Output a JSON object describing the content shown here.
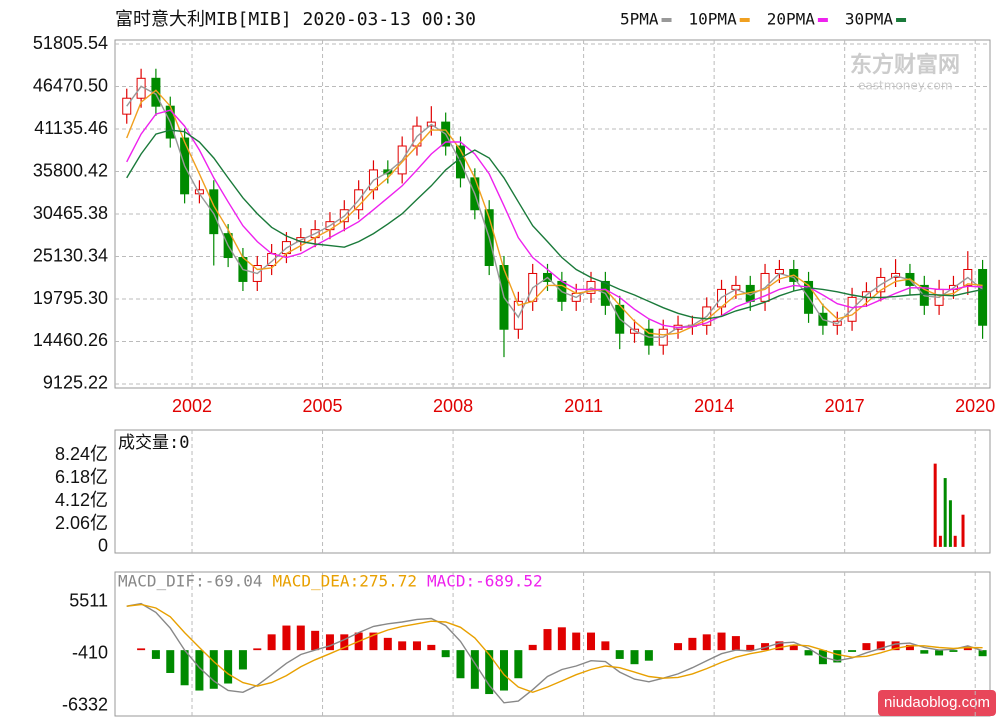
{
  "chart_data": [
    {
      "type": "candlestick",
      "title": "富时意大利MIB[MIB] 2020-03-13 00:30",
      "xlim": [
        2000.23,
        2020.34
      ],
      "xticks": [
        2002,
        2005,
        2008,
        2011,
        2014,
        2017,
        2020
      ],
      "ylim": [
        8623,
        52308
      ],
      "yticks": [
        51805.54,
        {
          "value": 46470.5,
          "label": "46470.50"
        },
        41135.46,
        35800.42,
        30465.38,
        25130.34,
        {
          "value": 19795.3,
          "label": "19795.30"
        },
        14460.26,
        9125.22
      ],
      "grid": true,
      "legend": "top-right",
      "up_color": "#e00000",
      "down_color": "#008a00",
      "x": [
        2000.5,
        2000.83,
        2001.17,
        2001.5,
        2001.83,
        2002.17,
        2002.5,
        2002.83,
        2003.17,
        2003.5,
        2003.83,
        2004.17,
        2004.5,
        2004.83,
        2005.17,
        2005.5,
        2005.83,
        2006.17,
        2006.5,
        2006.83,
        2007.17,
        2007.5,
        2007.83,
        2008.17,
        2008.5,
        2008.83,
        2009.17,
        2009.5,
        2009.83,
        2010.17,
        2010.5,
        2010.83,
        2011.17,
        2011.5,
        2011.83,
        2012.17,
        2012.5,
        2012.83,
        2013.17,
        2013.5,
        2013.83,
        2014.17,
        2014.5,
        2014.83,
        2015.17,
        2015.5,
        2015.83,
        2016.17,
        2016.5,
        2016.83,
        2017.17,
        2017.5,
        2017.83,
        2018.17,
        2018.5,
        2018.83,
        2019.17,
        2019.5,
        2019.83,
        2020.17
      ],
      "open": [
        43000,
        45000,
        47500,
        44000,
        40000,
        33000,
        33500,
        28000,
        25000,
        22000,
        24000,
        25500,
        27000,
        27500,
        28500,
        29500,
        31000,
        33500,
        36000,
        35500,
        39000,
        41500,
        42000,
        39000,
        35000,
        31000,
        24000,
        16000,
        19500,
        23000,
        22000,
        19500,
        20500,
        22000,
        19000,
        15500,
        16000,
        14000,
        16000,
        16500,
        16500,
        18800,
        21000,
        21500,
        19500,
        23000,
        23500,
        22000,
        18000,
        16500,
        17000,
        20000,
        20700,
        22500,
        23000,
        21500,
        19000,
        21000,
        21500,
        23500
      ],
      "high": [
        46200,
        48700,
        48700,
        45200,
        41200,
        34700,
        34700,
        29200,
        26200,
        25200,
        26700,
        28200,
        28700,
        29700,
        30700,
        32200,
        34700,
        37200,
        37200,
        40200,
        42700,
        44000,
        43200,
        40200,
        36200,
        32200,
        25200,
        20700,
        24200,
        24200,
        23200,
        21700,
        23200,
        23200,
        20200,
        17200,
        17200,
        17200,
        17700,
        17700,
        20000,
        22200,
        22700,
        22700,
        24200,
        24700,
        24700,
        23200,
        19200,
        18200,
        21200,
        21900,
        23700,
        24800,
        24200,
        22700,
        22200,
        22700,
        25800,
        24700
      ],
      "low": [
        41800,
        43800,
        42800,
        38800,
        31800,
        31800,
        24000,
        23800,
        20800,
        20800,
        22800,
        24300,
        25800,
        26300,
        27300,
        28300,
        29800,
        32300,
        34300,
        34300,
        37800,
        40300,
        37800,
        33800,
        29800,
        22800,
        12500,
        14800,
        18300,
        20800,
        18300,
        18300,
        19300,
        17800,
        13500,
        14300,
        12800,
        12800,
        14800,
        15300,
        15300,
        17600,
        19800,
        18300,
        18300,
        21800,
        20800,
        16800,
        15300,
        15300,
        15800,
        18800,
        19500,
        21300,
        20300,
        17800,
        17800,
        19800,
        20300,
        14800
      ],
      "close": [
        45000,
        47500,
        44000,
        40000,
        33000,
        33500,
        28000,
        25000,
        22000,
        24000,
        25500,
        27000,
        27500,
        28500,
        29500,
        31000,
        33500,
        36000,
        35500,
        39000,
        41500,
        42000,
        39000,
        35000,
        31000,
        24000,
        16000,
        19500,
        23000,
        22000,
        19500,
        20500,
        22000,
        19000,
        15500,
        16000,
        14000,
        16000,
        16500,
        16500,
        18800,
        21000,
        21500,
        19500,
        23000,
        23500,
        22000,
        18000,
        16500,
        17000,
        20000,
        20700,
        22500,
        23000,
        21500,
        19000,
        21000,
        21500,
        23500,
        16500
      ],
      "series": [
        {
          "name": "5PMA",
          "color": "#999999",
          "values": [
            44000,
            46500,
            45500,
            42000,
            36500,
            33000,
            30500,
            26500,
            23500,
            23000,
            24500,
            26200,
            27200,
            28000,
            29000,
            30200,
            32200,
            34700,
            35700,
            37200,
            40200,
            41700,
            40500,
            37000,
            33000,
            27500,
            20000,
            17500,
            21200,
            22500,
            20700,
            20000,
            21200,
            20500,
            17300,
            15800,
            15000,
            15000,
            16200,
            16500,
            17600,
            20000,
            21000,
            20300,
            21200,
            23000,
            22500,
            20000,
            17200,
            16700,
            18500,
            20300,
            21600,
            22700,
            22200,
            20200,
            20000,
            21200,
            22500,
            21000
          ]
        },
        {
          "name": "10PMA",
          "color": "#f0a020",
          "values": [
            40000,
            44500,
            46000,
            44000,
            39500,
            35500,
            31500,
            28500,
            25000,
            23500,
            23700,
            25500,
            26500,
            27500,
            28500,
            29700,
            31500,
            33500,
            35000,
            37000,
            39000,
            41000,
            41000,
            38500,
            35000,
            30000,
            23500,
            19000,
            19500,
            21500,
            21500,
            20500,
            20800,
            21000,
            19000,
            17000,
            15500,
            15300,
            15500,
            16300,
            17200,
            18800,
            20300,
            20600,
            21000,
            22300,
            22800,
            21500,
            19000,
            17300,
            17800,
            19300,
            20900,
            22000,
            22300,
            21000,
            20200,
            20500,
            21700,
            21500
          ]
        },
        {
          "name": "20PMA",
          "color": "#ee22ee",
          "values": [
            37000,
            40500,
            43000,
            43500,
            41500,
            38500,
            35000,
            32000,
            29000,
            27000,
            25500,
            25000,
            25500,
            26500,
            27500,
            28500,
            29500,
            31000,
            32500,
            34000,
            36000,
            38000,
            39500,
            39500,
            38000,
            35500,
            31500,
            27500,
            25000,
            23500,
            22000,
            21000,
            21000,
            21000,
            20000,
            18500,
            17300,
            16500,
            16200,
            16300,
            16800,
            17700,
            18800,
            19500,
            20200,
            21000,
            21500,
            21300,
            20300,
            19200,
            18700,
            18900,
            19700,
            20500,
            21200,
            21200,
            21000,
            21000,
            21400,
            21300
          ]
        },
        {
          "name": "30PMA",
          "color": "#1a7a3a",
          "values": [
            35000,
            38000,
            40500,
            41000,
            40800,
            39500,
            37500,
            35000,
            32500,
            30500,
            28800,
            27700,
            27000,
            26700,
            26500,
            26300,
            27000,
            28000,
            29200,
            30500,
            32300,
            34000,
            36000,
            37500,
            38500,
            37500,
            35000,
            32000,
            29000,
            27000,
            25000,
            23500,
            22500,
            21800,
            21000,
            20300,
            19500,
            18700,
            18000,
            17500,
            17300,
            17600,
            18300,
            18800,
            19400,
            20200,
            20800,
            21200,
            21000,
            20700,
            20300,
            20000,
            20000,
            20100,
            20300,
            20400,
            20300,
            20200,
            20600,
            21000
          ]
        }
      ]
    },
    {
      "type": "bar",
      "title": "成交量:0",
      "xgrid": true,
      "ylim": [
        -0.55,
        10.53
      ],
      "yticks": [
        {
          "value": 8.24,
          "label": "8.24亿"
        },
        {
          "value": 6.18,
          "label": "6.18亿"
        },
        {
          "value": 4.12,
          "label": "4.12亿"
        },
        {
          "value": 2.06,
          "label": "2.06亿"
        },
        0
      ],
      "x": [
        2019.08,
        2019.2,
        2019.31,
        2019.43,
        2019.54,
        2019.72
      ],
      "values": [
        7.5,
        1.0,
        6.2,
        4.2,
        1.0,
        2.9
      ],
      "colors": [
        "#e00000",
        "#e00000",
        "#008a00",
        "#008a00",
        "#e00000",
        "#e00000"
      ]
    },
    {
      "type": "macd",
      "xgrid": true,
      "up_color": "#e00000",
      "down_color": "#008a00",
      "ylim": [
        -7500,
        8900
      ],
      "yticks": [
        5511,
        -410,
        -6332
      ],
      "series": [
        {
          "name": "MACD_DIF:-69.04",
          "color": "#888888",
          "values": [
            5000,
            5300,
            4300,
            2500,
            0,
            -2000,
            -3500,
            -4600,
            -4800,
            -4000,
            -2800,
            -1500,
            -500,
            0,
            500,
            1200,
            2000,
            2700,
            3000,
            3200,
            3500,
            3600,
            2800,
            1000,
            -1500,
            -4000,
            -6000,
            -5800,
            -4500,
            -3000,
            -2200,
            -1800,
            -1200,
            -1300,
            -2500,
            -3300,
            -3600,
            -3200,
            -2700,
            -2000,
            -1200,
            -400,
            0,
            -100,
            300,
            800,
            900,
            200,
            -800,
            -1200,
            -900,
            -300,
            200,
            700,
            800,
            300,
            0,
            100,
            500,
            -69.04
          ]
        },
        {
          "name": "MACD_DEA:275.72",
          "color": "#e8a000",
          "values": [
            5000,
            5200,
            4800,
            3800,
            2000,
            300,
            -1300,
            -2700,
            -3700,
            -4100,
            -3700,
            -2900,
            -1900,
            -1100,
            -400,
            300,
            1000,
            1700,
            2300,
            2700,
            3000,
            3300,
            3200,
            2600,
            1400,
            -500,
            -2800,
            -4200,
            -4800,
            -4200,
            -3500,
            -2800,
            -2200,
            -1800,
            -2000,
            -2500,
            -3000,
            -3200,
            -3100,
            -2700,
            -2100,
            -1400,
            -800,
            -400,
            -100,
            300,
            600,
            500,
            0,
            -500,
            -800,
            -700,
            -300,
            200,
            500,
            500,
            300,
            200,
            300,
            275.72
          ]
        },
        {
          "name": "MACD:-689.52",
          "color": "#ee22ee",
          "values": [
            0,
            200,
            -1000,
            -2600,
            -4000,
            -4600,
            -4400,
            -3800,
            -2200,
            200,
            1800,
            2800,
            2800,
            2200,
            1800,
            1800,
            2000,
            2000,
            1400,
            1000,
            1000,
            600,
            -800,
            -3200,
            -4400,
            -5000,
            -4600,
            -3200,
            600,
            2400,
            2600,
            2000,
            2000,
            1000,
            -1000,
            -1600,
            -1200,
            0,
            800,
            1400,
            1800,
            2000,
            1600,
            600,
            800,
            1000,
            600,
            -600,
            -1600,
            -1400,
            -200,
            800,
            1000,
            1000,
            600,
            -400,
            -600,
            -200,
            400,
            -689.52
          ]
        }
      ]
    }
  ],
  "watermark": {
    "title": "东方财富网",
    "url": "eastmoney.com"
  },
  "footer": "niudaoblog.com"
}
